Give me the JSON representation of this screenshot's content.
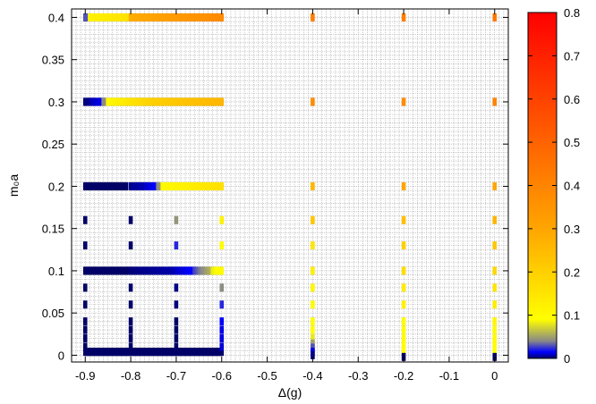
{
  "chart_data": {
    "type": "heatmap",
    "title": "",
    "xlabel": "Δ(g)",
    "ylabel": "m₀a",
    "xlim": [
      -0.93,
      0.03
    ],
    "ylim": [
      -0.008,
      0.41
    ],
    "x_ticks": [
      {
        "v": -0.9,
        "label": "-0.9"
      },
      {
        "v": -0.8,
        "label": "-0.8"
      },
      {
        "v": -0.7,
        "label": "-0.7"
      },
      {
        "v": -0.6,
        "label": "-0.6"
      },
      {
        "v": -0.5,
        "label": "-0.5"
      },
      {
        "v": -0.4,
        "label": "-0.4"
      },
      {
        "v": -0.3,
        "label": "-0.3"
      },
      {
        "v": -0.2,
        "label": "-0.2"
      },
      {
        "v": -0.1,
        "label": "-0.1"
      },
      {
        "v": 0,
        "label": "0"
      }
    ],
    "y_ticks": [
      {
        "v": 0,
        "label": "0"
      },
      {
        "v": 0.05,
        "label": "0.05"
      },
      {
        "v": 0.1,
        "label": "0.1"
      },
      {
        "v": 0.15,
        "label": "0.15"
      },
      {
        "v": 0.2,
        "label": "0.2"
      },
      {
        "v": 0.25,
        "label": "0.25"
      },
      {
        "v": 0.3,
        "label": "0.3"
      },
      {
        "v": 0.35,
        "label": "0.35"
      },
      {
        "v": 0.4,
        "label": "0.4"
      }
    ],
    "grid": true,
    "colorbar": {
      "range": [
        0,
        0.8
      ],
      "ticks": [
        {
          "v": 0,
          "label": "0"
        },
        {
          "v": 0.1,
          "label": "0.1"
        },
        {
          "v": 0.2,
          "label": "0.2"
        },
        {
          "v": 0.3,
          "label": "0.3"
        },
        {
          "v": 0.4,
          "label": "0.4"
        },
        {
          "v": 0.5,
          "label": "0.5"
        },
        {
          "v": 0.6,
          "label": "0.6"
        },
        {
          "v": 0.7,
          "label": "0.7"
        },
        {
          "v": 0.8,
          "label": "0.8"
        }
      ],
      "stops": [
        {
          "v": 0.0,
          "color": "#000066"
        },
        {
          "v": 0.015,
          "color": "#0000ff"
        },
        {
          "v": 0.04,
          "color": "#888888"
        },
        {
          "v": 0.09,
          "color": "#ffff00"
        },
        {
          "v": 0.3,
          "color": "#ffa500"
        },
        {
          "v": 0.8,
          "color": "#ff0000"
        }
      ]
    },
    "point_size": {
      "dx": 0.009,
      "dy": 0.0095
    },
    "series": [
      {
        "y": 0.4,
        "segments": [
          {
            "x0": -0.9,
            "x1": -0.89,
            "v0": 0.03,
            "v1": 0.03
          },
          {
            "x0": -0.89,
            "x1": -0.8,
            "v0": 0.12,
            "v1": 0.16
          },
          {
            "x0": -0.8,
            "x1": -0.6,
            "v0": 0.28,
            "v1": 0.38
          }
        ]
      },
      {
        "y": 0.3,
        "segments": [
          {
            "x0": -0.9,
            "x1": -0.885,
            "v0": 0.002,
            "v1": 0.004
          },
          {
            "x0": -0.885,
            "x1": -0.86,
            "v0": 0.008,
            "v1": 0.014
          },
          {
            "x0": -0.86,
            "x1": -0.85,
            "v0": 0.04,
            "v1": 0.045
          },
          {
            "x0": -0.85,
            "x1": -0.75,
            "v0": 0.1,
            "v1": 0.2
          },
          {
            "x0": -0.75,
            "x1": -0.6,
            "v0": 0.2,
            "v1": 0.26
          }
        ]
      },
      {
        "y": 0.2,
        "segments": [
          {
            "x0": -0.9,
            "x1": -0.81,
            "v0": 0.0,
            "v1": 0.0
          },
          {
            "x0": -0.8,
            "x1": -0.765,
            "v0": 0.004,
            "v1": 0.008
          },
          {
            "x0": -0.765,
            "x1": -0.74,
            "v0": 0.01,
            "v1": 0.016
          },
          {
            "x0": -0.74,
            "x1": -0.73,
            "v0": 0.04,
            "v1": 0.05
          },
          {
            "x0": -0.73,
            "x1": -0.6,
            "v0": 0.1,
            "v1": 0.16
          }
        ]
      },
      {
        "y": 0.1,
        "segments": [
          {
            "x0": -0.9,
            "x1": -0.8,
            "v0": 0.0,
            "v1": 0.0
          },
          {
            "x0": -0.8,
            "x1": -0.7,
            "v0": 0.002,
            "v1": 0.007
          },
          {
            "x0": -0.7,
            "x1": -0.66,
            "v0": 0.009,
            "v1": 0.016
          },
          {
            "x0": -0.66,
            "x1": -0.62,
            "v0": 0.025,
            "v1": 0.06
          },
          {
            "x0": -0.62,
            "x1": -0.6,
            "v0": 0.08,
            "v1": 0.1
          }
        ]
      },
      {
        "y": 0.004,
        "segments": [
          {
            "x0": -0.9,
            "x1": -0.6,
            "v0": 0.0,
            "v1": 0.0
          }
        ]
      }
    ],
    "points": [
      {
        "x": -0.9,
        "y": 0.16,
        "v": 0.0
      },
      {
        "x": -0.9,
        "y": 0.13,
        "v": 0.0
      },
      {
        "x": -0.9,
        "y": 0.08,
        "v": 0.0
      },
      {
        "x": -0.9,
        "y": 0.06,
        "v": 0.0
      },
      {
        "x": -0.9,
        "y": 0.04,
        "v": 0.0
      },
      {
        "x": -0.9,
        "y": 0.03,
        "v": 0.0
      },
      {
        "x": -0.9,
        "y": 0.02,
        "v": 0.0
      },
      {
        "x": -0.9,
        "y": 0.01,
        "v": 0.0
      },
      {
        "x": -0.8,
        "y": 0.16,
        "v": 0.0
      },
      {
        "x": -0.8,
        "y": 0.13,
        "v": 0.0
      },
      {
        "x": -0.8,
        "y": 0.08,
        "v": 0.0
      },
      {
        "x": -0.8,
        "y": 0.06,
        "v": 0.0
      },
      {
        "x": -0.8,
        "y": 0.04,
        "v": 0.0
      },
      {
        "x": -0.8,
        "y": 0.03,
        "v": 0.0
      },
      {
        "x": -0.8,
        "y": 0.02,
        "v": 0.0
      },
      {
        "x": -0.8,
        "y": 0.01,
        "v": 0.0
      },
      {
        "x": -0.7,
        "y": 0.16,
        "v": 0.045
      },
      {
        "x": -0.7,
        "y": 0.13,
        "v": 0.022
      },
      {
        "x": -0.7,
        "y": 0.08,
        "v": 0.003
      },
      {
        "x": -0.7,
        "y": 0.06,
        "v": 0.002
      },
      {
        "x": -0.7,
        "y": 0.04,
        "v": 0.0
      },
      {
        "x": -0.7,
        "y": 0.03,
        "v": 0.0
      },
      {
        "x": -0.7,
        "y": 0.02,
        "v": 0.0
      },
      {
        "x": -0.7,
        "y": 0.01,
        "v": 0.0
      },
      {
        "x": -0.6,
        "y": 0.16,
        "v": 0.12
      },
      {
        "x": -0.6,
        "y": 0.13,
        "v": 0.1
      },
      {
        "x": -0.6,
        "y": 0.08,
        "v": 0.042
      },
      {
        "x": -0.6,
        "y": 0.06,
        "v": 0.022
      },
      {
        "x": -0.6,
        "y": 0.04,
        "v": 0.015
      },
      {
        "x": -0.6,
        "y": 0.03,
        "v": 0.013
      },
      {
        "x": -0.6,
        "y": 0.02,
        "v": 0.012
      },
      {
        "x": -0.6,
        "y": 0.01,
        "v": 0.011
      },
      {
        "x": -0.4,
        "y": 0.4,
        "v": 0.42
      },
      {
        "x": -0.4,
        "y": 0.3,
        "v": 0.38
      },
      {
        "x": -0.4,
        "y": 0.2,
        "v": 0.26
      },
      {
        "x": -0.4,
        "y": 0.16,
        "v": 0.22
      },
      {
        "x": -0.4,
        "y": 0.13,
        "v": 0.15
      },
      {
        "x": -0.4,
        "y": 0.1,
        "v": 0.13
      },
      {
        "x": -0.4,
        "y": 0.08,
        "v": 0.11
      },
      {
        "x": -0.4,
        "y": 0.06,
        "v": 0.1
      },
      {
        "x": -0.4,
        "y": 0.04,
        "v": 0.095
      },
      {
        "x": -0.4,
        "y": 0.03,
        "v": 0.092
      },
      {
        "x": -0.4,
        "y": 0.02,
        "v": 0.08
      },
      {
        "x": -0.4,
        "y": 0.014,
        "v": 0.05
      },
      {
        "x": -0.4,
        "y": 0.009,
        "v": 0.03
      },
      {
        "x": -0.4,
        "y": 0.004,
        "v": 0.012
      },
      {
        "x": -0.4,
        "y": 0.0,
        "v": 0.003
      },
      {
        "x": -0.2,
        "y": 0.4,
        "v": 0.42
      },
      {
        "x": -0.2,
        "y": 0.3,
        "v": 0.38
      },
      {
        "x": -0.2,
        "y": 0.2,
        "v": 0.3
      },
      {
        "x": -0.2,
        "y": 0.16,
        "v": 0.24
      },
      {
        "x": -0.2,
        "y": 0.13,
        "v": 0.2
      },
      {
        "x": -0.2,
        "y": 0.1,
        "v": 0.17
      },
      {
        "x": -0.2,
        "y": 0.08,
        "v": 0.14
      },
      {
        "x": -0.2,
        "y": 0.06,
        "v": 0.12
      },
      {
        "x": -0.2,
        "y": 0.04,
        "v": 0.1
      },
      {
        "x": -0.2,
        "y": 0.03,
        "v": 0.098
      },
      {
        "x": -0.2,
        "y": 0.02,
        "v": 0.096
      },
      {
        "x": -0.2,
        "y": 0.012,
        "v": 0.095
      },
      {
        "x": -0.2,
        "y": 0.005,
        "v": 0.093
      },
      {
        "x": -0.2,
        "y": -0.002,
        "v": 0.0
      },
      {
        "x": 0,
        "y": 0.4,
        "v": 0.44
      },
      {
        "x": 0,
        "y": 0.3,
        "v": 0.4
      },
      {
        "x": 0,
        "y": 0.2,
        "v": 0.3
      },
      {
        "x": 0,
        "y": 0.16,
        "v": 0.26
      },
      {
        "x": 0,
        "y": 0.13,
        "v": 0.22
      },
      {
        "x": 0,
        "y": 0.1,
        "v": 0.18
      },
      {
        "x": 0,
        "y": 0.08,
        "v": 0.15
      },
      {
        "x": 0,
        "y": 0.06,
        "v": 0.13
      },
      {
        "x": 0,
        "y": 0.04,
        "v": 0.11
      },
      {
        "x": 0,
        "y": 0.03,
        "v": 0.1
      },
      {
        "x": 0,
        "y": 0.02,
        "v": 0.098
      },
      {
        "x": 0,
        "y": 0.012,
        "v": 0.096
      },
      {
        "x": 0,
        "y": 0.005,
        "v": 0.094
      },
      {
        "x": 0,
        "y": -0.002,
        "v": 0.0
      }
    ]
  }
}
